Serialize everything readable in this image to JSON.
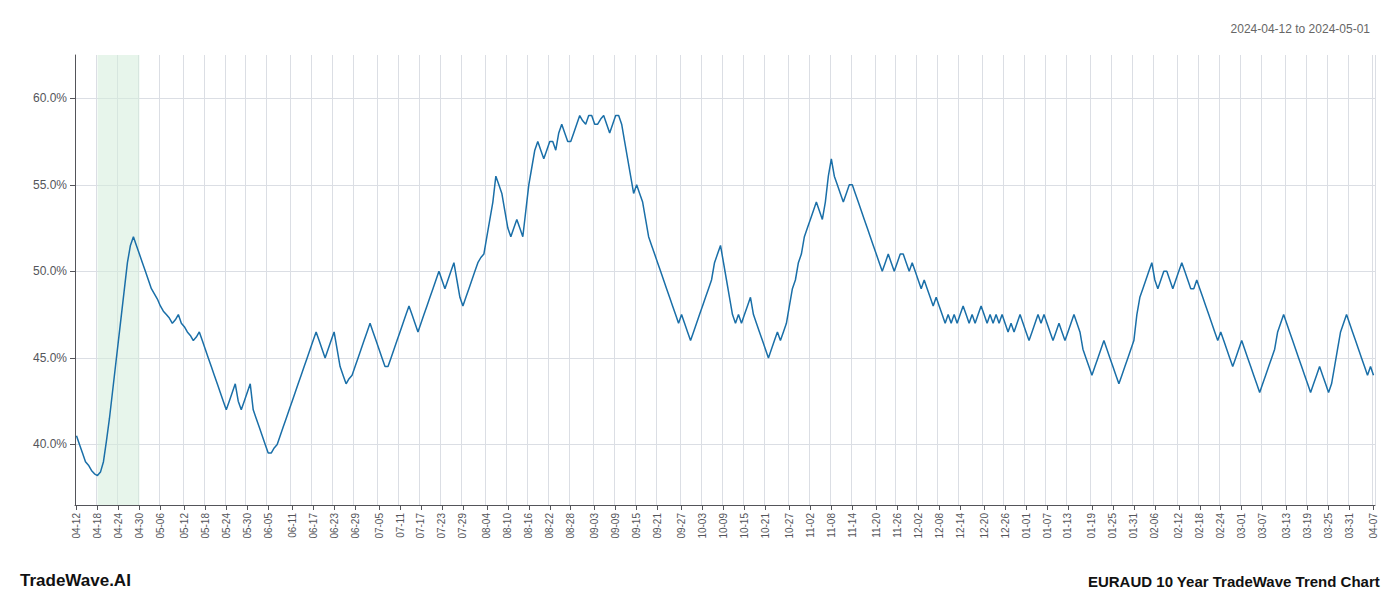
{
  "chart_data": {
    "type": "line",
    "title": "EURAUD 10 Year TradeWave Trend Chart",
    "subtitle": "2024-04-12 to 2024-05-01",
    "annotations": [
      "TradeWave.AI"
    ],
    "color": "#1a6fa8",
    "grid": true,
    "ylim": [
      36.5,
      62.5
    ],
    "yticks": [
      {
        "value": 40.0,
        "label": "40.0%"
      },
      {
        "value": 45.0,
        "label": "45.0%"
      },
      {
        "value": 50.0,
        "label": "50.0%"
      },
      {
        "value": 55.0,
        "label": "55.0%"
      },
      {
        "value": 60.0,
        "label": "60.0%"
      }
    ],
    "shade": {
      "from": "04-18",
      "to": "04-30",
      "color": "#d4edda"
    },
    "categories": [
      "04-12",
      null,
      null,
      null,
      null,
      null,
      null,
      "04-18",
      null,
      null,
      null,
      null,
      null,
      null,
      "04-24",
      null,
      null,
      null,
      null,
      null,
      null,
      "04-30",
      null,
      null,
      null,
      null,
      null,
      null,
      "05-06",
      null,
      null,
      null,
      null,
      null,
      null,
      null,
      "05-12",
      null,
      null,
      null,
      null,
      null,
      null,
      "05-18",
      null,
      null,
      null,
      null,
      null,
      null,
      "05-24",
      null,
      null,
      null,
      null,
      null,
      null,
      "05-30",
      null,
      null,
      null,
      null,
      null,
      null,
      "06-05",
      null,
      null,
      null,
      null,
      null,
      null,
      null,
      "06-11",
      null,
      null,
      null,
      null,
      null,
      null,
      "06-17",
      null,
      null,
      null,
      null,
      null,
      null,
      "06-23",
      null,
      null,
      null,
      null,
      null,
      null,
      "06-29",
      null,
      null,
      null,
      null,
      null,
      null,
      null,
      "07-05",
      null,
      null,
      null,
      null,
      null,
      null,
      "07-11",
      null,
      null,
      null,
      null,
      null,
      null,
      "07-17",
      null,
      null,
      null,
      null,
      null,
      null,
      "07-23",
      null,
      null,
      null,
      null,
      null,
      null,
      "07-29",
      null,
      null,
      null,
      null,
      null,
      null,
      null,
      "08-04",
      null,
      null,
      null,
      null,
      null,
      null,
      "08-10",
      null,
      null,
      null,
      null,
      null,
      null,
      "08-16",
      null,
      null,
      null,
      null,
      null,
      null,
      "08-22",
      null,
      null,
      null,
      null,
      null,
      null,
      "08-28",
      null,
      null,
      null,
      null,
      null,
      null,
      null,
      "09-03",
      null,
      null,
      null,
      null,
      null,
      null,
      "09-09",
      null,
      null,
      null,
      null,
      null,
      null,
      "09-15",
      null,
      null,
      null,
      null,
      null,
      null,
      "09-21",
      null,
      null,
      null,
      null,
      null,
      null,
      null,
      "09-27",
      null,
      null,
      null,
      null,
      null,
      null,
      "10-03",
      null,
      null,
      null,
      null,
      null,
      null,
      "10-09",
      null,
      null,
      null,
      null,
      null,
      null,
      "10-15",
      null,
      null,
      null,
      null,
      null,
      null,
      "10-21",
      null,
      null,
      null,
      null,
      null,
      null,
      null,
      "10-27",
      null,
      null,
      null,
      null,
      null,
      null,
      "11-02",
      null,
      null,
      null,
      null,
      null,
      null,
      "11-08",
      null,
      null,
      null,
      null,
      null,
      null,
      "11-14",
      null,
      null,
      null,
      null,
      null,
      null,
      null,
      "11-20",
      null,
      null,
      null,
      null,
      null,
      null,
      "11-26",
      null,
      null,
      null,
      null,
      null,
      null,
      "12-02",
      null,
      null,
      null,
      null,
      null,
      null,
      "12-08",
      null,
      null,
      null,
      null,
      null,
      null,
      "12-14",
      null,
      null,
      null,
      null,
      null,
      null,
      null,
      "12-20",
      null,
      null,
      null,
      null,
      null,
      null,
      "12-26",
      null,
      null,
      null,
      null,
      null,
      null,
      "01-01",
      null,
      null,
      null,
      null,
      null,
      null,
      "01-07",
      null,
      null,
      null,
      null,
      null,
      null,
      "01-13",
      null,
      null,
      null,
      null,
      null,
      null,
      null,
      "01-19",
      null,
      null,
      null,
      null,
      null,
      null,
      "01-25",
      null,
      null,
      null,
      null,
      null,
      null,
      "01-31",
      null,
      null,
      null,
      null,
      null,
      null,
      "02-06",
      null,
      null,
      null,
      null,
      null,
      null,
      null,
      "02-12",
      null,
      null,
      null,
      null,
      null,
      null,
      "02-18",
      null,
      null,
      null,
      null,
      null,
      null,
      "02-24",
      null,
      null,
      null,
      null,
      null,
      null,
      "03-01",
      null,
      null,
      null,
      null,
      null,
      null,
      "03-07",
      null,
      null,
      null,
      null,
      null,
      null,
      null,
      "03-13",
      null,
      null,
      null,
      null,
      null,
      null,
      "03-19",
      null,
      null,
      null,
      null,
      null,
      null,
      "03-25",
      null,
      null,
      null,
      null,
      null,
      null,
      "03-31",
      null,
      null,
      null,
      null,
      null,
      null,
      null,
      "04-07"
    ],
    "values": [
      40.5,
      40.0,
      39.5,
      39.0,
      38.8,
      38.5,
      38.3,
      38.2,
      38.4,
      39.0,
      40.2,
      41.5,
      43.0,
      44.5,
      46.0,
      47.5,
      49.0,
      50.5,
      51.5,
      52.0,
      51.5,
      51.0,
      50.5,
      50.0,
      49.5,
      49.0,
      48.7,
      48.4,
      48.0,
      47.7,
      47.5,
      47.3,
      47.0,
      47.2,
      47.5,
      47.0,
      46.8,
      46.5,
      46.3,
      46.0,
      46.2,
      46.5,
      46.0,
      45.5,
      45.0,
      44.5,
      44.0,
      43.5,
      43.0,
      42.5,
      42.0,
      42.5,
      43.0,
      43.5,
      42.5,
      42.0,
      42.5,
      43.0,
      43.5,
      42.0,
      41.5,
      41.0,
      40.5,
      40.0,
      39.5,
      39.5,
      39.8,
      40.0,
      40.5,
      41.0,
      41.5,
      42.0,
      42.5,
      43.0,
      43.5,
      44.0,
      44.5,
      45.0,
      45.5,
      46.0,
      46.5,
      46.0,
      45.5,
      45.0,
      45.5,
      46.0,
      46.5,
      45.5,
      44.5,
      44.0,
      43.5,
      43.8,
      44.0,
      44.5,
      45.0,
      45.5,
      46.0,
      46.5,
      47.0,
      46.5,
      46.0,
      45.5,
      45.0,
      44.5,
      44.5,
      45.0,
      45.5,
      46.0,
      46.5,
      47.0,
      47.5,
      48.0,
      47.5,
      47.0,
      46.5,
      47.0,
      47.5,
      48.0,
      48.5,
      49.0,
      49.5,
      50.0,
      49.5,
      49.0,
      49.5,
      50.0,
      50.5,
      49.5,
      48.5,
      48.0,
      48.5,
      49.0,
      49.5,
      50.0,
      50.5,
      50.8,
      51.0,
      52.0,
      53.0,
      54.0,
      55.5,
      55.0,
      54.5,
      53.5,
      52.5,
      52.0,
      52.5,
      53.0,
      52.5,
      52.0,
      53.5,
      55.0,
      56.0,
      57.0,
      57.5,
      57.0,
      56.5,
      57.0,
      57.5,
      57.5,
      57.0,
      58.0,
      58.5,
      58.0,
      57.5,
      57.5,
      58.0,
      58.5,
      59.0,
      58.7,
      58.5,
      59.0,
      59.0,
      58.5,
      58.5,
      58.8,
      59.0,
      58.5,
      58.0,
      58.5,
      59.0,
      59.0,
      58.5,
      57.5,
      56.5,
      55.5,
      54.5,
      55.0,
      54.5,
      54.0,
      53.0,
      52.0,
      51.5,
      51.0,
      50.5,
      50.0,
      49.5,
      49.0,
      48.5,
      48.0,
      47.5,
      47.0,
      47.5,
      47.0,
      46.5,
      46.0,
      46.5,
      47.0,
      47.5,
      48.0,
      48.5,
      49.0,
      49.5,
      50.5,
      51.0,
      51.5,
      50.5,
      49.5,
      48.5,
      47.5,
      47.0,
      47.5,
      47.0,
      47.5,
      48.0,
      48.5,
      47.5,
      47.0,
      46.5,
      46.0,
      45.5,
      45.0,
      45.5,
      46.0,
      46.5,
      46.0,
      46.5,
      47.0,
      48.0,
      49.0,
      49.5,
      50.5,
      51.0,
      52.0,
      52.5,
      53.0,
      53.5,
      54.0,
      53.5,
      53.0,
      54.0,
      55.5,
      56.5,
      55.5,
      55.0,
      54.5,
      54.0,
      54.5,
      55.0,
      55.0,
      54.5,
      54.0,
      53.5,
      53.0,
      52.5,
      52.0,
      51.5,
      51.0,
      50.5,
      50.0,
      50.5,
      51.0,
      50.5,
      50.0,
      50.5,
      51.0,
      51.0,
      50.5,
      50.0,
      50.5,
      50.0,
      49.5,
      49.0,
      49.5,
      49.0,
      48.5,
      48.0,
      48.5,
      48.0,
      47.5,
      47.0,
      47.5,
      47.0,
      47.5,
      47.0,
      47.5,
      48.0,
      47.5,
      47.0,
      47.5,
      47.0,
      47.5,
      48.0,
      47.5,
      47.0,
      47.5,
      47.0,
      47.5,
      47.0,
      47.5,
      47.0,
      46.5,
      47.0,
      46.5,
      47.0,
      47.5,
      47.0,
      46.5,
      46.0,
      46.5,
      47.0,
      47.5,
      47.0,
      47.5,
      47.0,
      46.5,
      46.0,
      46.5,
      47.0,
      46.5,
      46.0,
      46.5,
      47.0,
      47.5,
      47.0,
      46.5,
      45.5,
      45.0,
      44.5,
      44.0,
      44.5,
      45.0,
      45.5,
      46.0,
      45.5,
      45.0,
      44.5,
      44.0,
      43.5,
      44.0,
      44.5,
      45.0,
      45.5,
      46.0,
      47.5,
      48.5,
      49.0,
      49.5,
      50.0,
      50.5,
      49.5,
      49.0,
      49.5,
      50.0,
      50.0,
      49.5,
      49.0,
      49.5,
      50.0,
      50.5,
      50.0,
      49.5,
      49.0,
      49.0,
      49.5,
      49.0,
      48.5,
      48.0,
      47.5,
      47.0,
      46.5,
      46.0,
      46.5,
      46.0,
      45.5,
      45.0,
      44.5,
      45.0,
      45.5,
      46.0,
      45.5,
      45.0,
      44.5,
      44.0,
      43.5,
      43.0,
      43.5,
      44.0,
      44.5,
      45.0,
      45.5,
      46.5,
      47.0,
      47.5,
      47.0,
      46.5,
      46.0,
      45.5,
      45.0,
      44.5,
      44.0,
      43.5,
      43.0,
      43.5,
      44.0,
      44.5,
      44.0,
      43.5,
      43.0,
      43.5,
      44.5,
      45.5,
      46.5,
      47.0,
      47.5,
      47.0,
      46.5,
      46.0,
      45.5,
      45.0,
      44.5,
      44.0,
      44.5,
      44.0
    ]
  }
}
